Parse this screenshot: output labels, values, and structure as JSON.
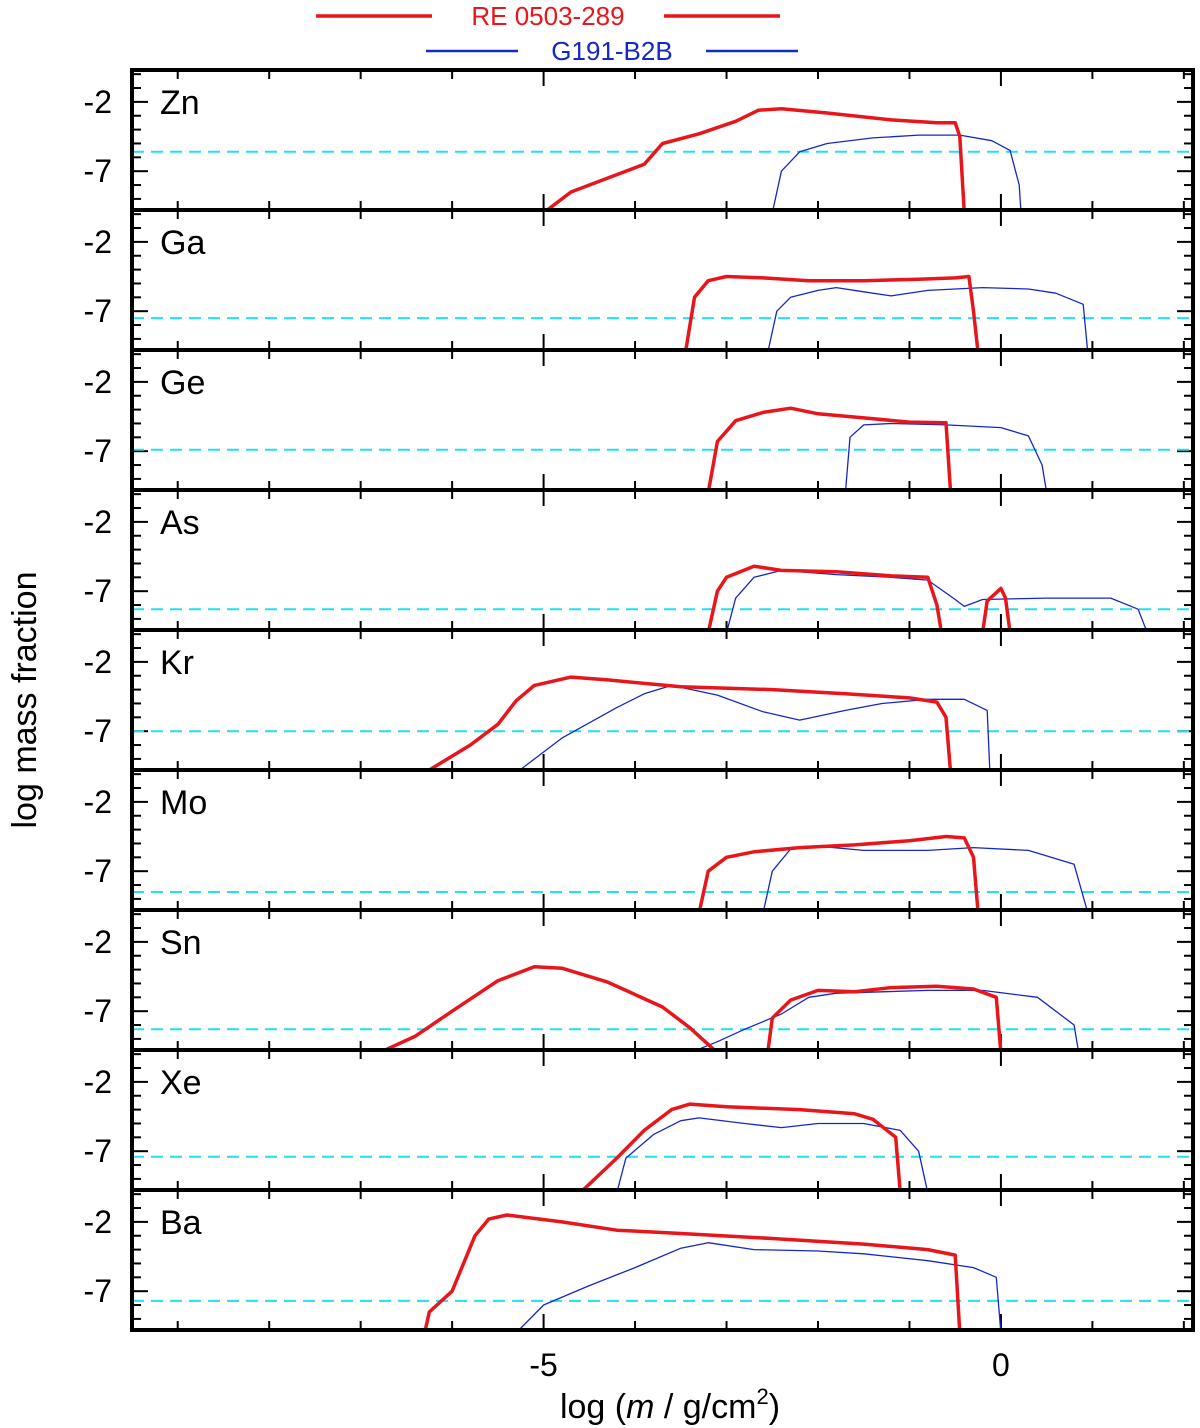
{
  "chart_data": {
    "type": "line",
    "panel_layout": "stacked, shared x-axis",
    "xlabel_parts": {
      "pre": "log (",
      "var": "m",
      "post": " / g/cm",
      "sup": "2",
      "close": ")"
    },
    "ylabel": "log mass fraction",
    "xlim": [
      -9.5,
      2.1
    ],
    "ylim": [
      -9.8,
      0.3
    ],
    "x_ticks_labeled": [
      {
        "value": -5,
        "label": "-5"
      },
      {
        "value": 0,
        "label": "0"
      }
    ],
    "x_minor_step": 1,
    "y_ticks_labeled": [
      {
        "value": -2,
        "label": "-2"
      },
      {
        "value": -7,
        "label": "-7"
      }
    ],
    "y_minor_step": 1,
    "legend": {
      "placement": "top-center, above plot",
      "entries": [
        {
          "label": "RE 0503-289",
          "color": "#e8161b"
        },
        {
          "label": "G191-B2B",
          "color": "#1428c8"
        }
      ]
    },
    "series_styles": {
      "RE 0503-289": {
        "color": "#e8161b",
        "width": 3.5
      },
      "G191-B2B": {
        "color": "#1428c8",
        "width": 1.3
      },
      "solar": {
        "color": "#22e0ef",
        "width": 2,
        "dash": "12,7"
      }
    },
    "panels": [
      {
        "element": "Zn",
        "solar": -5.6,
        "RE 0503-289": [
          [
            -5.0,
            -10.0
          ],
          [
            -4.7,
            -8.5
          ],
          [
            -4.3,
            -7.5
          ],
          [
            -3.9,
            -6.5
          ],
          [
            -3.7,
            -5.0
          ],
          [
            -3.3,
            -4.3
          ],
          [
            -2.9,
            -3.4
          ],
          [
            -2.65,
            -2.6
          ],
          [
            -2.4,
            -2.5
          ],
          [
            -1.9,
            -2.8
          ],
          [
            -1.2,
            -3.3
          ],
          [
            -0.7,
            -3.5
          ],
          [
            -0.5,
            -3.5
          ],
          [
            -0.45,
            -4.5
          ],
          [
            -0.4,
            -10.0
          ]
        ],
        "G191-B2B": [
          [
            -2.5,
            -10.0
          ],
          [
            -2.4,
            -7.0
          ],
          [
            -2.2,
            -5.6
          ],
          [
            -1.9,
            -5.0
          ],
          [
            -1.4,
            -4.6
          ],
          [
            -0.9,
            -4.4
          ],
          [
            -0.45,
            -4.4
          ],
          [
            -0.1,
            -4.8
          ],
          [
            0.1,
            -5.5
          ],
          [
            0.2,
            -8.0
          ],
          [
            0.22,
            -10.0
          ]
        ]
      },
      {
        "element": "Ga",
        "solar": -7.5,
        "RE 0503-289": [
          [
            -3.45,
            -10.0
          ],
          [
            -3.35,
            -6.0
          ],
          [
            -3.2,
            -4.8
          ],
          [
            -3.0,
            -4.5
          ],
          [
            -2.6,
            -4.6
          ],
          [
            -2.1,
            -4.8
          ],
          [
            -1.5,
            -4.8
          ],
          [
            -0.9,
            -4.7
          ],
          [
            -0.5,
            -4.6
          ],
          [
            -0.35,
            -4.5
          ],
          [
            -0.3,
            -7.0
          ],
          [
            -0.25,
            -10.0
          ]
        ],
        "G191-B2B": [
          [
            -2.55,
            -10.0
          ],
          [
            -2.45,
            -7.0
          ],
          [
            -2.3,
            -6.0
          ],
          [
            -2.0,
            -5.5
          ],
          [
            -1.8,
            -5.3
          ],
          [
            -1.5,
            -5.6
          ],
          [
            -1.2,
            -5.9
          ],
          [
            -0.8,
            -5.5
          ],
          [
            -0.2,
            -5.3
          ],
          [
            0.3,
            -5.4
          ],
          [
            0.6,
            -5.7
          ],
          [
            0.9,
            -6.5
          ],
          [
            0.95,
            -10.0
          ]
        ]
      },
      {
        "element": "Ge",
        "solar": -6.9,
        "RE 0503-289": [
          [
            -3.2,
            -10.0
          ],
          [
            -3.1,
            -6.3
          ],
          [
            -2.9,
            -4.8
          ],
          [
            -2.6,
            -4.2
          ],
          [
            -2.3,
            -3.9
          ],
          [
            -2.0,
            -4.3
          ],
          [
            -1.5,
            -4.6
          ],
          [
            -1.0,
            -4.9
          ],
          [
            -0.6,
            -4.95
          ],
          [
            -0.55,
            -10.0
          ]
        ],
        "G191-B2B": [
          [
            -1.7,
            -10.0
          ],
          [
            -1.65,
            -6.0
          ],
          [
            -1.5,
            -5.1
          ],
          [
            -1.2,
            -5.0
          ],
          [
            -0.6,
            -5.1
          ],
          [
            0.0,
            -5.3
          ],
          [
            0.3,
            -5.9
          ],
          [
            0.45,
            -8.0
          ],
          [
            0.5,
            -10.0
          ]
        ]
      },
      {
        "element": "As",
        "solar": -8.3,
        "RE 0503-289": [
          [
            -3.2,
            -10.0
          ],
          [
            -3.1,
            -7.0
          ],
          [
            -3.0,
            -6.0
          ],
          [
            -2.7,
            -5.2
          ],
          [
            -2.4,
            -5.5
          ],
          [
            -1.8,
            -5.6
          ],
          [
            -1.2,
            -5.9
          ],
          [
            -0.8,
            -6.0
          ],
          [
            -0.7,
            -8.0
          ],
          [
            -0.65,
            -10.0
          ],
          [
            -0.2,
            -10.0
          ],
          [
            -0.15,
            -7.7
          ],
          [
            0.0,
            -6.8
          ],
          [
            0.05,
            -7.5
          ],
          [
            0.1,
            -10.0
          ]
        ],
        "G191-B2B": [
          [
            -3.0,
            -10.0
          ],
          [
            -2.9,
            -7.5
          ],
          [
            -2.7,
            -6.0
          ],
          [
            -2.4,
            -5.5
          ],
          [
            -1.8,
            -5.8
          ],
          [
            -1.2,
            -6.0
          ],
          [
            -0.8,
            -6.2
          ],
          [
            -0.5,
            -7.6
          ],
          [
            -0.4,
            -8.1
          ],
          [
            -0.2,
            -7.6
          ],
          [
            0.5,
            -7.5
          ],
          [
            1.2,
            -7.5
          ],
          [
            1.5,
            -8.3
          ],
          [
            1.6,
            -10.0
          ]
        ]
      },
      {
        "element": "Kr",
        "solar": -7.0,
        "RE 0503-289": [
          [
            -6.3,
            -10.0
          ],
          [
            -5.8,
            -8.0
          ],
          [
            -5.5,
            -6.5
          ],
          [
            -5.3,
            -4.8
          ],
          [
            -5.1,
            -3.7
          ],
          [
            -4.7,
            -3.1
          ],
          [
            -4.3,
            -3.3
          ],
          [
            -3.5,
            -3.8
          ],
          [
            -2.5,
            -4.0
          ],
          [
            -1.7,
            -4.3
          ],
          [
            -1.0,
            -4.6
          ],
          [
            -0.7,
            -4.9
          ],
          [
            -0.6,
            -6.0
          ],
          [
            -0.55,
            -10.0
          ]
        ],
        "G191-B2B": [
          [
            -5.3,
            -10.0
          ],
          [
            -4.8,
            -7.5
          ],
          [
            -4.2,
            -5.3
          ],
          [
            -3.9,
            -4.3
          ],
          [
            -3.6,
            -3.7
          ],
          [
            -3.1,
            -4.4
          ],
          [
            -2.6,
            -5.6
          ],
          [
            -2.2,
            -6.2
          ],
          [
            -1.7,
            -5.5
          ],
          [
            -1.3,
            -5.0
          ],
          [
            -0.8,
            -4.7
          ],
          [
            -0.4,
            -4.7
          ],
          [
            -0.15,
            -5.5
          ],
          [
            -0.12,
            -10.0
          ]
        ]
      },
      {
        "element": "Mo",
        "solar": -8.5,
        "RE 0503-289": [
          [
            -3.3,
            -10.0
          ],
          [
            -3.2,
            -7.0
          ],
          [
            -3.0,
            -6.0
          ],
          [
            -2.7,
            -5.6
          ],
          [
            -2.2,
            -5.3
          ],
          [
            -1.6,
            -5.1
          ],
          [
            -1.0,
            -4.8
          ],
          [
            -0.6,
            -4.5
          ],
          [
            -0.4,
            -4.6
          ],
          [
            -0.3,
            -6.0
          ],
          [
            -0.25,
            -10.0
          ]
        ],
        "G191-B2B": [
          [
            -2.6,
            -10.0
          ],
          [
            -2.5,
            -7.0
          ],
          [
            -2.3,
            -5.4
          ],
          [
            -2.0,
            -5.2
          ],
          [
            -1.5,
            -5.5
          ],
          [
            -0.8,
            -5.5
          ],
          [
            -0.3,
            -5.3
          ],
          [
            0.3,
            -5.5
          ],
          [
            0.8,
            -6.5
          ],
          [
            0.95,
            -10.0
          ]
        ]
      },
      {
        "element": "Sn",
        "solar": -8.3,
        "RE 0503-289": [
          [
            -6.8,
            -10.0
          ],
          [
            -6.4,
            -8.8
          ],
          [
            -6.0,
            -7.0
          ],
          [
            -5.5,
            -4.8
          ],
          [
            -5.1,
            -3.8
          ],
          [
            -4.8,
            -3.9
          ],
          [
            -4.3,
            -4.9
          ],
          [
            -3.7,
            -6.7
          ],
          [
            -3.4,
            -8.2
          ],
          [
            -3.1,
            -10.0
          ],
          [
            -2.55,
            -10.0
          ],
          [
            -2.5,
            -7.5
          ],
          [
            -2.3,
            -6.2
          ],
          [
            -2.0,
            -5.5
          ],
          [
            -1.6,
            -5.6
          ],
          [
            -1.2,
            -5.3
          ],
          [
            -0.7,
            -5.2
          ],
          [
            -0.3,
            -5.4
          ],
          [
            -0.05,
            -6.0
          ],
          [
            0.0,
            -10.0
          ]
        ],
        "G191-B2B": [
          [
            -3.4,
            -10.0
          ],
          [
            -3.1,
            -9.2
          ],
          [
            -2.8,
            -8.3
          ],
          [
            -2.4,
            -7.2
          ],
          [
            -2.1,
            -6.0
          ],
          [
            -1.8,
            -5.7
          ],
          [
            -1.3,
            -5.6
          ],
          [
            -0.8,
            -5.5
          ],
          [
            -0.2,
            -5.5
          ],
          [
            0.4,
            -6.0
          ],
          [
            0.8,
            -8.0
          ],
          [
            0.85,
            -10.0
          ]
        ]
      },
      {
        "element": "Xe",
        "solar": -7.4,
        "RE 0503-289": [
          [
            -4.6,
            -10.0
          ],
          [
            -4.2,
            -7.5
          ],
          [
            -3.9,
            -5.5
          ],
          [
            -3.6,
            -4.0
          ],
          [
            -3.4,
            -3.6
          ],
          [
            -3.0,
            -3.8
          ],
          [
            -2.2,
            -4.0
          ],
          [
            -1.6,
            -4.3
          ],
          [
            -1.4,
            -4.7
          ],
          [
            -1.15,
            -6.0
          ],
          [
            -1.1,
            -10.0
          ]
        ],
        "G191-B2B": [
          [
            -4.2,
            -10.0
          ],
          [
            -4.1,
            -7.5
          ],
          [
            -3.8,
            -5.8
          ],
          [
            -3.5,
            -4.8
          ],
          [
            -3.3,
            -4.6
          ],
          [
            -2.8,
            -5.0
          ],
          [
            -2.4,
            -5.3
          ],
          [
            -2.0,
            -5.0
          ],
          [
            -1.5,
            -5.0
          ],
          [
            -1.1,
            -5.5
          ],
          [
            -0.9,
            -7.0
          ],
          [
            -0.8,
            -10.0
          ]
        ]
      },
      {
        "element": "Ba",
        "solar": -7.7,
        "RE 0503-289": [
          [
            -6.3,
            -10.0
          ],
          [
            -6.25,
            -8.5
          ],
          [
            -6.0,
            -7.0
          ],
          [
            -5.75,
            -3.0
          ],
          [
            -5.6,
            -1.8
          ],
          [
            -5.4,
            -1.5
          ],
          [
            -4.8,
            -2.0
          ],
          [
            -4.2,
            -2.6
          ],
          [
            -3.6,
            -2.8
          ],
          [
            -2.5,
            -3.2
          ],
          [
            -1.5,
            -3.6
          ],
          [
            -0.8,
            -4.0
          ],
          [
            -0.5,
            -4.4
          ],
          [
            -0.45,
            -10.0
          ]
        ],
        "G191-B2B": [
          [
            -5.3,
            -10.0
          ],
          [
            -5.0,
            -8.0
          ],
          [
            -4.5,
            -6.6
          ],
          [
            -4.0,
            -5.3
          ],
          [
            -3.5,
            -3.9
          ],
          [
            -3.2,
            -3.5
          ],
          [
            -2.7,
            -4.0
          ],
          [
            -2.0,
            -4.1
          ],
          [
            -1.5,
            -4.3
          ],
          [
            -0.8,
            -4.8
          ],
          [
            -0.3,
            -5.3
          ],
          [
            -0.05,
            -6.0
          ],
          [
            0.0,
            -10.0
          ]
        ]
      }
    ]
  }
}
